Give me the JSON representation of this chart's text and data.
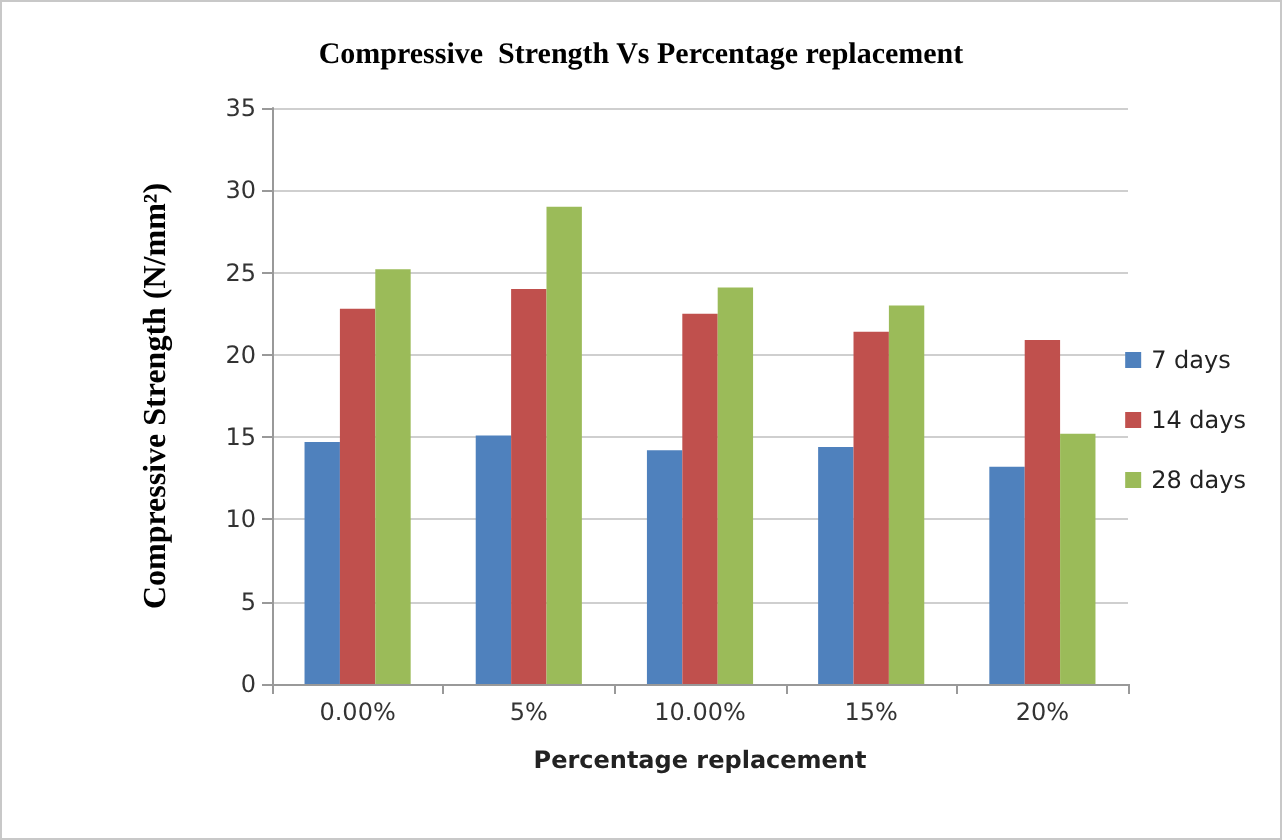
{
  "chart_data": {
    "type": "bar",
    "title": "Compressive  Strength Vs Percentage replacement",
    "xlabel": "Percentage replacement",
    "ylabel": "Compressive Strength (N/mm²)",
    "categories": [
      "0.00%",
      "5%",
      "10.00%",
      "15%",
      "20%"
    ],
    "series": [
      {
        "name": "7 days",
        "color": "#4f81bd",
        "values": [
          14.7,
          15.1,
          14.2,
          14.4,
          13.2
        ]
      },
      {
        "name": "14 days",
        "color": "#c0504d",
        "values": [
          22.8,
          24.0,
          22.5,
          21.4,
          20.9
        ]
      },
      {
        "name": "28 days",
        "color": "#9bbb59",
        "values": [
          25.2,
          29.0,
          24.1,
          23.0,
          15.2
        ]
      }
    ],
    "ylim": [
      0,
      35
    ],
    "yticks": [
      0,
      5,
      10,
      15,
      20,
      25,
      30,
      35
    ],
    "grid": "y",
    "legend": "right"
  }
}
